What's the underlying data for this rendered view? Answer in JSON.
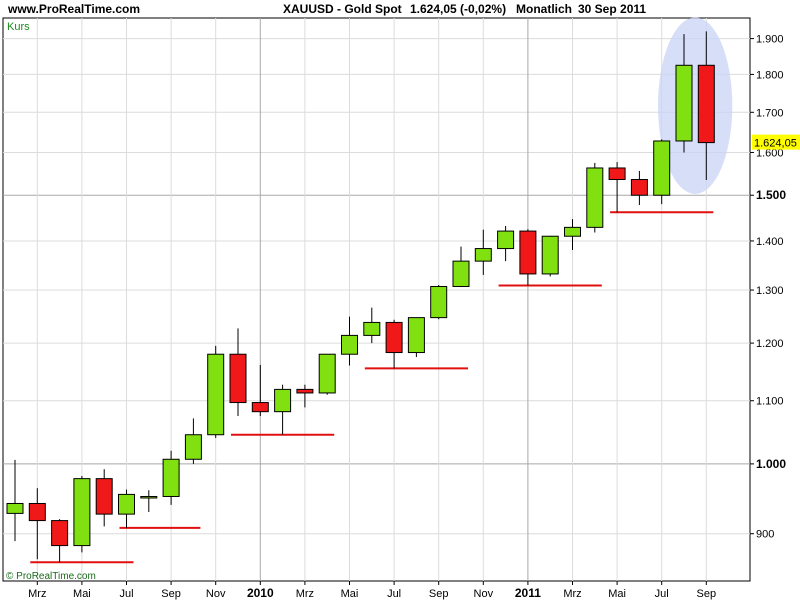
{
  "header": {
    "site": "www.ProRealTime.com",
    "symbol": "XAUUSD - Gold Spot",
    "price": "1.624,05 (-0,02%)",
    "period": "Monatlich",
    "date": "30 Sep 2011"
  },
  "panel_label": "Kurs",
  "copyright": "© ProRealTime.com",
  "last_price_label": "1.624,05",
  "colors": {
    "up": "#80e010",
    "down": "#f01818",
    "support": "#e01010",
    "highlight": "#c8d4f4",
    "last_price_bg": "#ffff00"
  },
  "chart_data": {
    "type": "candlestick",
    "title": "XAUUSD - Gold Spot",
    "y_scale": "log",
    "ylim": [
      838,
      1960
    ],
    "grid": true,
    "y_ticks": [
      {
        "value": 900,
        "label": "900",
        "bold": false
      },
      {
        "value": 1000,
        "label": "1.000",
        "bold": true
      },
      {
        "value": 1100,
        "label": "1.100",
        "bold": false
      },
      {
        "value": 1200,
        "label": "1.200",
        "bold": false
      },
      {
        "value": 1300,
        "label": "1.300",
        "bold": false
      },
      {
        "value": 1400,
        "label": "1.400",
        "bold": false
      },
      {
        "value": 1500,
        "label": "1.500",
        "bold": true
      },
      {
        "value": 1600,
        "label": "1.600",
        "bold": false
      },
      {
        "value": 1700,
        "label": "1.700",
        "bold": false
      },
      {
        "value": 1800,
        "label": "1.800",
        "bold": false
      },
      {
        "value": 1900,
        "label": "1.900",
        "bold": false
      }
    ],
    "x_ticks": [
      {
        "index": 1,
        "label": "Mrz",
        "bold": false
      },
      {
        "index": 3,
        "label": "Mai",
        "bold": false
      },
      {
        "index": 5,
        "label": "Jul",
        "bold": false
      },
      {
        "index": 7,
        "label": "Sep",
        "bold": false
      },
      {
        "index": 9,
        "label": "Nov",
        "bold": false
      },
      {
        "index": 11,
        "label": "2010",
        "bold": true
      },
      {
        "index": 13,
        "label": "Mrz",
        "bold": false
      },
      {
        "index": 15,
        "label": "Mai",
        "bold": false
      },
      {
        "index": 17,
        "label": "Jul",
        "bold": false
      },
      {
        "index": 19,
        "label": "Sep",
        "bold": false
      },
      {
        "index": 21,
        "label": "Nov",
        "bold": false
      },
      {
        "index": 23,
        "label": "2011",
        "bold": true
      },
      {
        "index": 25,
        "label": "Mrz",
        "bold": false
      },
      {
        "index": 27,
        "label": "Mai",
        "bold": false
      },
      {
        "index": 29,
        "label": "Jul",
        "bold": false
      },
      {
        "index": 31,
        "label": "Sep",
        "bold": false
      }
    ],
    "candles": [
      {
        "month": "2009-02",
        "open": 928,
        "high": 1006,
        "low": 890,
        "close": 942
      },
      {
        "month": "2009-03",
        "open": 942,
        "high": 964,
        "low": 866,
        "close": 918
      },
      {
        "month": "2009-04",
        "open": 918,
        "high": 920,
        "low": 862,
        "close": 884
      },
      {
        "month": "2009-05",
        "open": 884,
        "high": 982,
        "low": 875,
        "close": 978
      },
      {
        "month": "2009-06",
        "open": 978,
        "high": 992,
        "low": 910,
        "close": 927
      },
      {
        "month": "2009-07",
        "open": 927,
        "high": 962,
        "low": 908,
        "close": 955
      },
      {
        "month": "2009-08",
        "open": 951,
        "high": 961,
        "low": 930,
        "close": 952
      },
      {
        "month": "2009-09",
        "open": 952,
        "high": 1020,
        "low": 940,
        "close": 1007
      },
      {
        "month": "2009-10",
        "open": 1007,
        "high": 1071,
        "low": 1000,
        "close": 1045
      },
      {
        "month": "2009-11",
        "open": 1045,
        "high": 1195,
        "low": 1040,
        "close": 1180
      },
      {
        "month": "2009-12",
        "open": 1180,
        "high": 1227,
        "low": 1075,
        "close": 1097
      },
      {
        "month": "2010-01",
        "open": 1097,
        "high": 1161,
        "low": 1075,
        "close": 1082
      },
      {
        "month": "2010-02",
        "open": 1082,
        "high": 1127,
        "low": 1045,
        "close": 1119
      },
      {
        "month": "2010-03",
        "open": 1119,
        "high": 1127,
        "low": 1089,
        "close": 1113
      },
      {
        "month": "2010-04",
        "open": 1113,
        "high": 1180,
        "low": 1110,
        "close": 1180
      },
      {
        "month": "2010-05",
        "open": 1180,
        "high": 1249,
        "low": 1160,
        "close": 1214
      },
      {
        "month": "2010-06",
        "open": 1214,
        "high": 1266,
        "low": 1200,
        "close": 1238
      },
      {
        "month": "2010-07",
        "open": 1238,
        "high": 1243,
        "low": 1155,
        "close": 1183
      },
      {
        "month": "2010-08",
        "open": 1183,
        "high": 1245,
        "low": 1175,
        "close": 1247
      },
      {
        "month": "2010-09",
        "open": 1247,
        "high": 1310,
        "low": 1244,
        "close": 1307
      },
      {
        "month": "2010-10",
        "open": 1307,
        "high": 1388,
        "low": 1307,
        "close": 1358
      },
      {
        "month": "2010-11",
        "open": 1358,
        "high": 1424,
        "low": 1330,
        "close": 1384
      },
      {
        "month": "2010-12",
        "open": 1384,
        "high": 1432,
        "low": 1358,
        "close": 1421
      },
      {
        "month": "2011-01",
        "open": 1421,
        "high": 1425,
        "low": 1309,
        "close": 1332
      },
      {
        "month": "2011-02",
        "open": 1332,
        "high": 1411,
        "low": 1327,
        "close": 1410
      },
      {
        "month": "2011-03",
        "open": 1410,
        "high": 1447,
        "low": 1381,
        "close": 1429
      },
      {
        "month": "2011-04",
        "open": 1429,
        "high": 1575,
        "low": 1418,
        "close": 1563
      },
      {
        "month": "2011-05",
        "open": 1563,
        "high": 1577,
        "low": 1462,
        "close": 1536
      },
      {
        "month": "2011-06",
        "open": 1536,
        "high": 1556,
        "low": 1478,
        "close": 1500
      },
      {
        "month": "2011-07",
        "open": 1500,
        "high": 1632,
        "low": 1480,
        "close": 1628
      },
      {
        "month": "2011-08",
        "open": 1628,
        "high": 1913,
        "low": 1600,
        "close": 1825
      },
      {
        "month": "2011-09",
        "open": 1825,
        "high": 1921,
        "low": 1535,
        "close": 1624
      }
    ],
    "support_lines": [
      {
        "from_index": 1,
        "to_index": 5,
        "value": 862
      },
      {
        "from_index": 5,
        "to_index": 8,
        "value": 908
      },
      {
        "from_index": 10,
        "to_index": 14,
        "value": 1045
      },
      {
        "from_index": 16,
        "to_index": 20,
        "value": 1155
      },
      {
        "from_index": 22,
        "to_index": 26,
        "value": 1309
      },
      {
        "from_index": 27,
        "to_index": 31,
        "value": 1462
      }
    ],
    "highlight": {
      "from_index": 30,
      "to_index": 31,
      "low": 1535,
      "high": 1921
    },
    "last_price": 1624
  }
}
